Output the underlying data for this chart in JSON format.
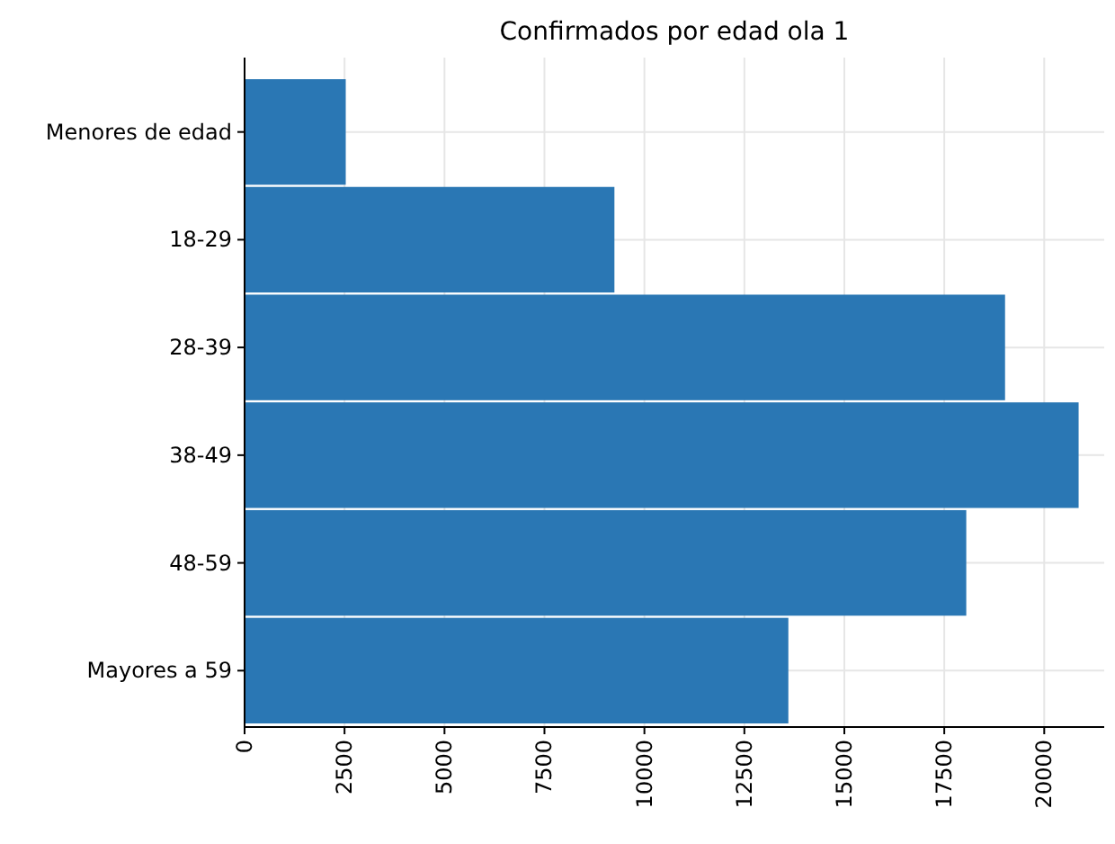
{
  "chart_data": {
    "type": "bar",
    "orientation": "horizontal",
    "title": "Confirmados por edad ola 1",
    "categories": [
      "Menores de edad",
      "18-29",
      "28-39",
      "38-49",
      "48-59",
      "Mayores a 59"
    ],
    "values": [
      2530,
      9250,
      19020,
      20860,
      18050,
      13600
    ],
    "color": "#2a77b4",
    "xlim": [
      0,
      21500
    ],
    "xticks": [
      0,
      2500,
      5000,
      7500,
      10000,
      12500,
      15000,
      17500,
      20000
    ],
    "grid": true
  }
}
